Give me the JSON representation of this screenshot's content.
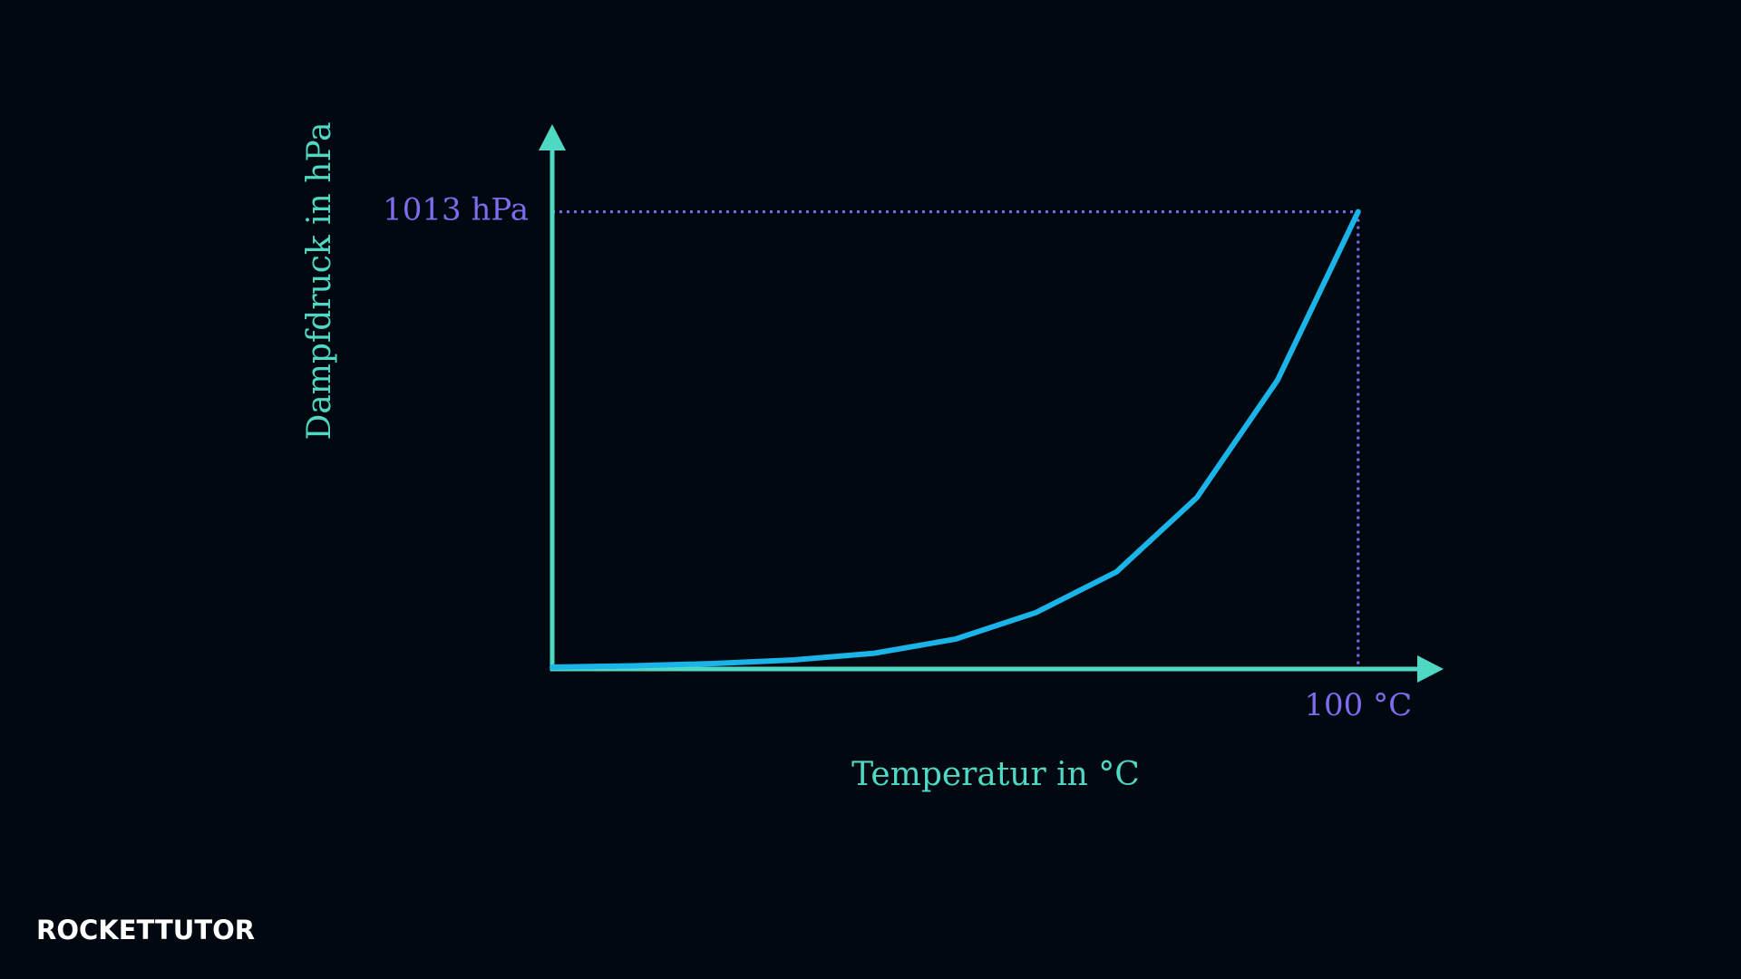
{
  "chart_data": {
    "type": "line",
    "x": [
      0,
      10,
      20,
      30,
      40,
      50,
      60,
      70,
      80,
      90,
      100
    ],
    "values": [
      4,
      7,
      12,
      20,
      35,
      66,
      125,
      215,
      380,
      640,
      1013
    ],
    "color": "#1ab4e8",
    "axis_color": "#4fd8c4",
    "tick_color": "#7d6cf0",
    "xlabel": "Temperatur in °C",
    "ylabel": "Dampfdruck in hPa",
    "xlim": [
      0,
      110.6
    ],
    "ylim": [
      0,
      1207
    ],
    "xticks": [
      {
        "value": 100,
        "label": "100 °C"
      }
    ],
    "yticks": [
      {
        "value": 1013,
        "label": "1013 hPa"
      }
    ]
  },
  "brand": "ROCKETTUTOR"
}
